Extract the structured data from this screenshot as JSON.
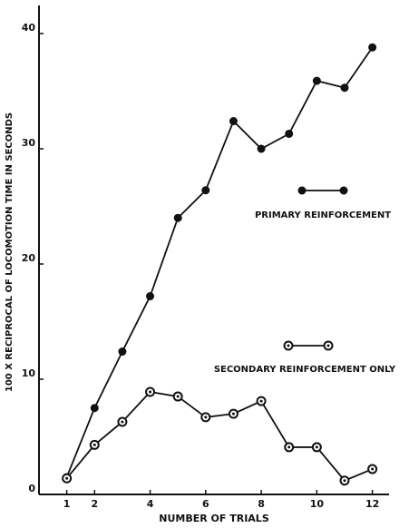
{
  "chart_data": {
    "type": "line",
    "xlabel": "NUMBER OF TRIALS",
    "ylabel": "100 X RECIPROCAL OF LOCOMOTION TIME IN SECONDS",
    "x": [
      1,
      2,
      3,
      4,
      5,
      6,
      7,
      8,
      9,
      10,
      11,
      12
    ],
    "series": [
      {
        "name": "PRIMARY REINFORCEMENT",
        "color": "#111111",
        "marker": "filled",
        "values": [
          1.5,
          7.5,
          12.4,
          17.2,
          24.0,
          26.4,
          32.4,
          30.0,
          31.3,
          35.9,
          35.3,
          38.8
        ]
      },
      {
        "name": "SECONDARY REINFORCEMENT ONLY",
        "color": "#111111",
        "marker": "open",
        "values": [
          1.4,
          4.3,
          6.3,
          8.9,
          8.5,
          6.7,
          7.0,
          8.1,
          4.1,
          4.1,
          1.2,
          2.2
        ]
      }
    ],
    "xlim": [
      0,
      12.6
    ],
    "xticks": [
      1,
      2,
      4,
      6,
      8,
      10,
      12
    ],
    "ylim": [
      0,
      42
    ],
    "yticks": [
      0,
      10,
      20,
      30,
      40
    ]
  }
}
